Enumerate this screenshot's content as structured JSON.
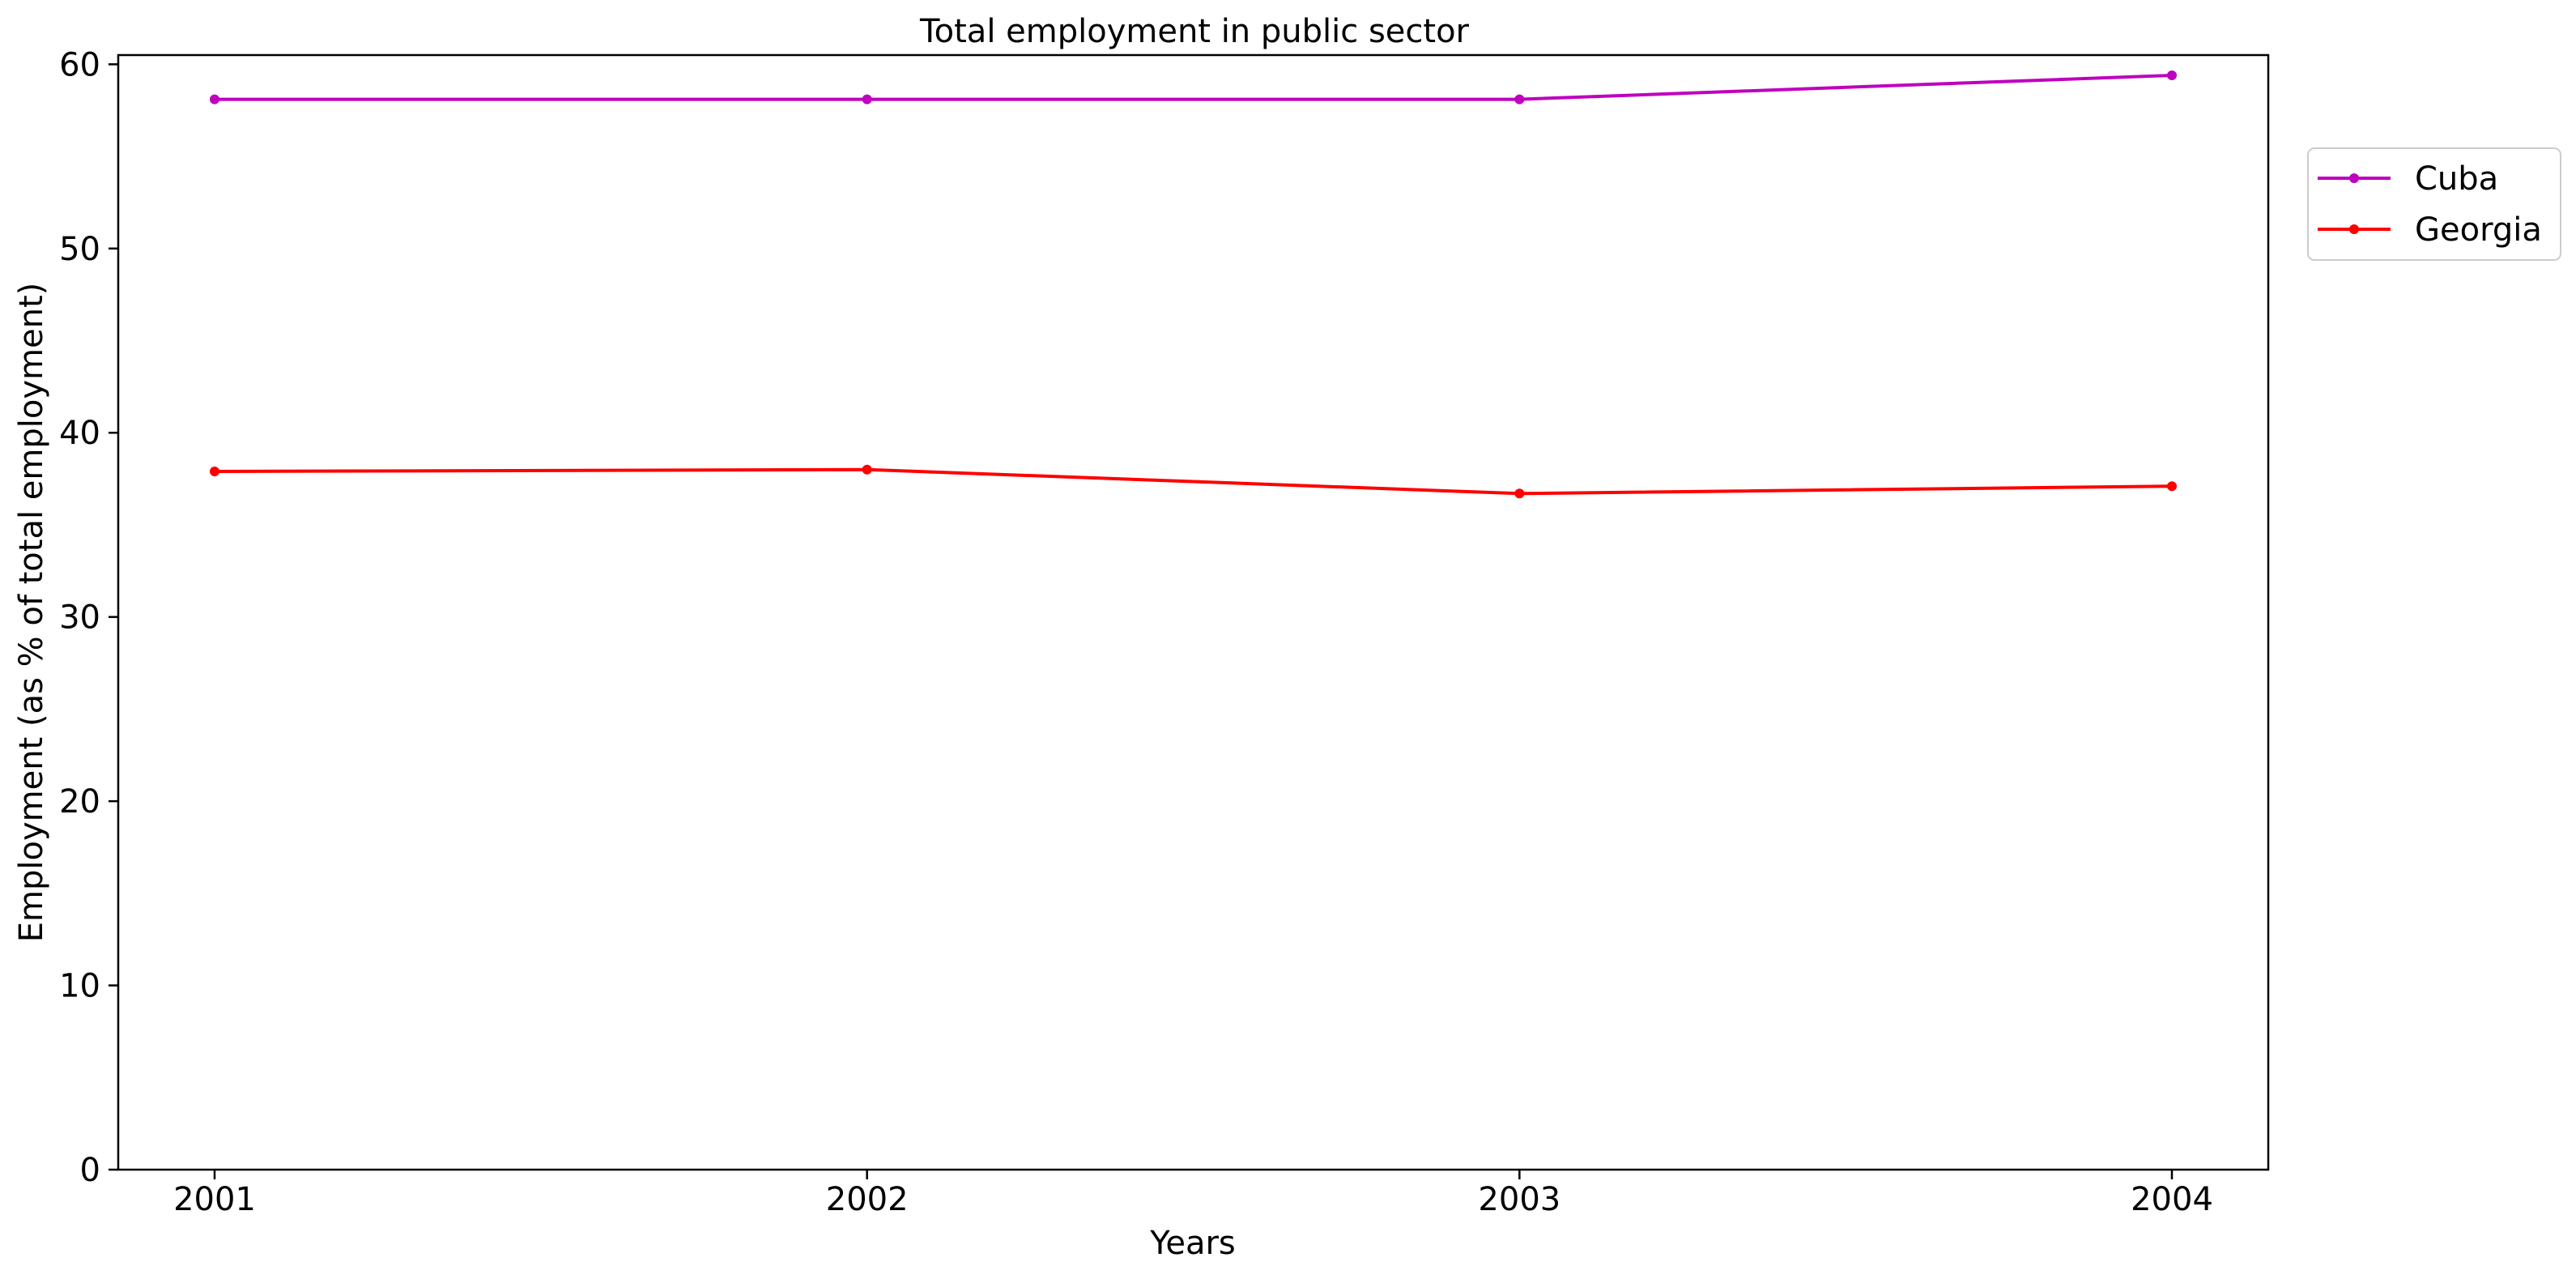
{
  "chart_data": {
    "type": "line",
    "title": "Total employment in public sector",
    "xlabel": "Years",
    "ylabel": "Employment (as % of total employment)",
    "x": [
      "2001",
      "2002",
      "2003",
      "2004"
    ],
    "yticks": [
      "0",
      "10",
      "20",
      "30",
      "40",
      "50",
      "60"
    ],
    "ylim": [
      0,
      60.5
    ],
    "grid": false,
    "legend_position": "upper-right-outside",
    "series": [
      {
        "name": "Cuba",
        "color": "#bf00bf",
        "values": [
          58.1,
          58.1,
          58.1,
          59.4
        ]
      },
      {
        "name": "Georgia",
        "color": "#ff0000",
        "values": [
          37.9,
          38.0,
          36.7,
          37.1
        ]
      }
    ]
  }
}
